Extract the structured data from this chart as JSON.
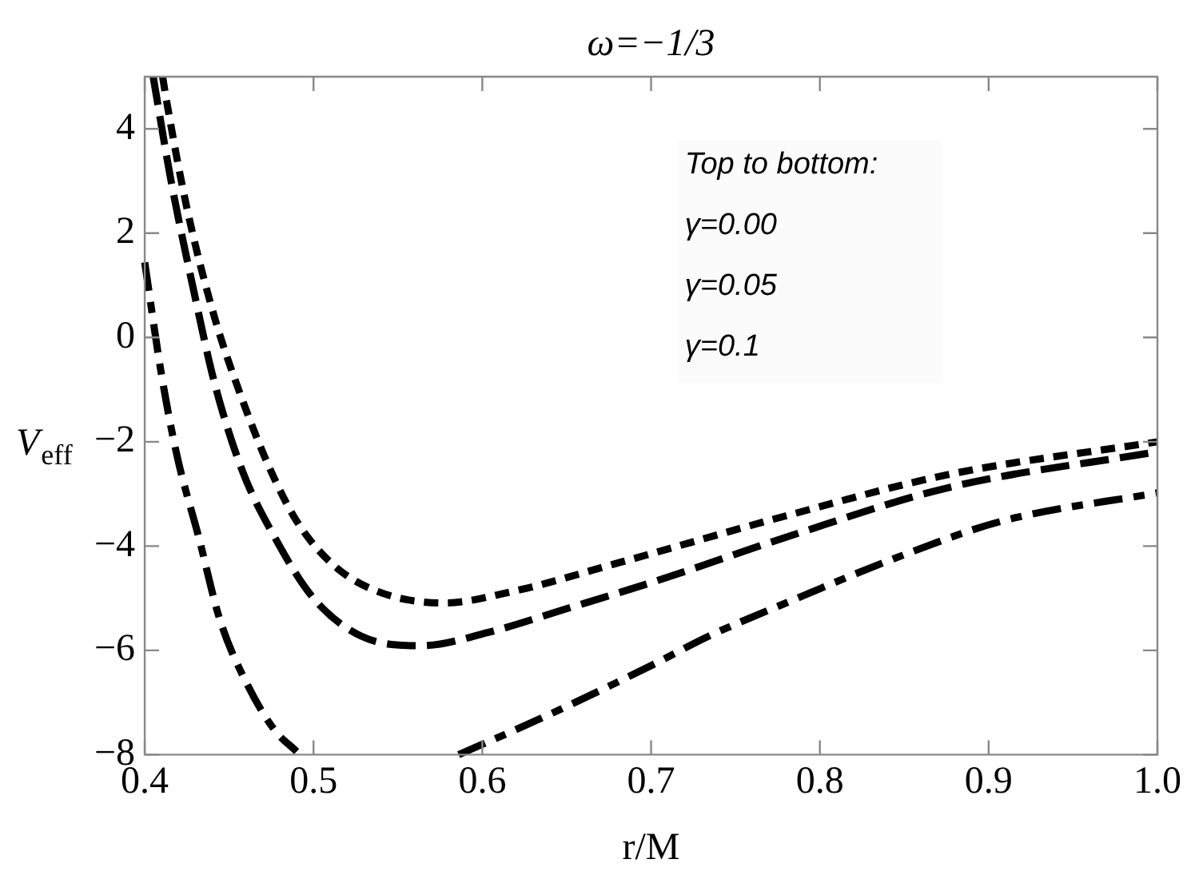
{
  "chart_data": {
    "type": "line",
    "title": "ω=−1/3",
    "xlabel": "r/M",
    "ylabel": "V$_{eff}$",
    "xlim": [
      0.4,
      1.0
    ],
    "xticks": [
      0.4,
      0.5,
      0.6,
      0.7,
      0.8,
      0.9,
      {
        "value": 1,
        "label": "1.0"
      }
    ],
    "ylim": [
      -8,
      5
    ],
    "yticks": [
      -8,
      -6,
      -4,
      -2,
      0,
      2,
      4
    ],
    "grid": false,
    "legend": false,
    "annotations": [
      "Top to bottom:",
      "γ=0.00",
      "γ=0.05",
      "γ=0.1"
    ],
    "series": [
      {
        "color": "#000000",
        "line_style": "dotted",
        "x": [
          0.4106,
          0.4126,
          0.425,
          0.4415,
          0.458,
          0.4735,
          0.49,
          0.512,
          0.538,
          0.577,
          0.618,
          0.683,
          0.78,
          0.876,
          1.0
        ],
        "values": [
          5,
          4.6,
          2.48,
          0.37,
          -1.21,
          -2.47,
          -3.52,
          -4.37,
          -4.87,
          -5.09,
          -4.87,
          -4.3,
          -3.42,
          -2.63,
          -2.0
        ]
      },
      {
        "color": "#000000",
        "line_style": "dashed",
        "x": [
          0.405,
          0.4155,
          0.429,
          0.4415,
          0.458,
          0.477,
          0.5,
          0.5285,
          0.564,
          0.603,
          0.651,
          0.702,
          0.78,
          0.876,
          1.0
        ],
        "values": [
          5,
          3.02,
          0.9,
          -0.89,
          -2.57,
          -3.83,
          -5.0,
          -5.73,
          -5.91,
          -5.66,
          -5.19,
          -4.68,
          -3.83,
          -2.88,
          -2.19
        ]
      },
      {
        "color": "#000000",
        "line_style": "dashed",
        "x": [
          0.4,
          0.4097,
          0.419,
          0.432,
          0.4445,
          0.461,
          0.477,
          0.49,
          0.54,
          0.586,
          0.635,
          0.702,
          0.734,
          0.78,
          0.844,
          0.908,
          1.0
        ],
        "values": [
          1.44,
          -0.67,
          -2.25,
          -3.83,
          -5.41,
          -6.67,
          -7.53,
          -7.94,
          null,
          -8,
          -7.3,
          -6.26,
          -5.73,
          -5.09,
          -4.24,
          -3.52,
          -2.98
        ]
      }
    ]
  }
}
